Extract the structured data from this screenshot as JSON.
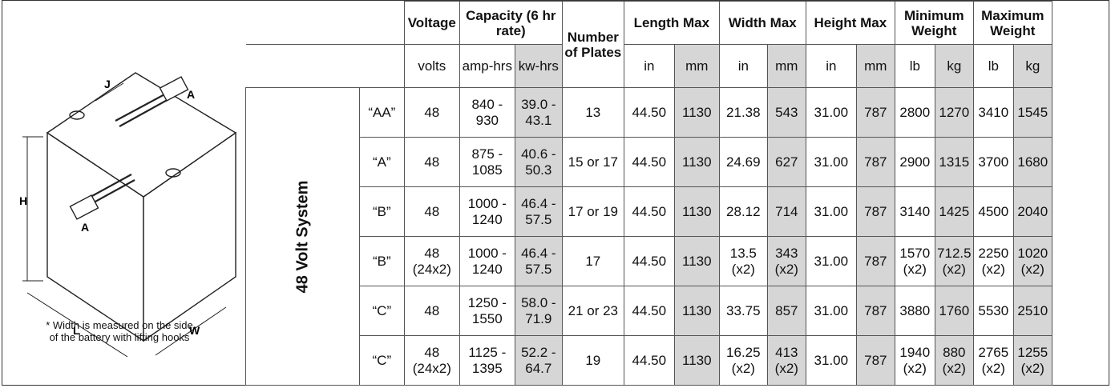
{
  "figure": {
    "label_j": "J",
    "label_a_top": "A",
    "label_h": "H",
    "label_a_bottom": "A",
    "label_l": "L",
    "label_w": "W",
    "note_line1": "* Width is measured on the side",
    "note_line2": "of the battery with lifting hooks"
  },
  "table": {
    "headers": {
      "voltage": "Voltage",
      "capacity": "Capacity (6 hr rate)",
      "plates": "Number of Plates",
      "length": "Length Max",
      "width": "Width Max",
      "height": "Height Max",
      "min_weight": "Minimum Weight",
      "max_weight": "Maximum Weight"
    },
    "units": [
      "volts",
      "amp-hrs",
      "kw-hrs",
      "in",
      "mm",
      "in",
      "mm",
      "in",
      "mm",
      "lb",
      "kg",
      "lb",
      "kg"
    ],
    "system_label": "48 Volt System",
    "rows": [
      {
        "cls": "“AA”",
        "volts": "48",
        "amp": "840 - 930",
        "kw": "39.0 - 43.1",
        "plates": "13",
        "len_in": "44.50",
        "len_mm": "1130",
        "wid_in": "21.38",
        "wid_mm": "543",
        "hgt_in": "31.00",
        "hgt_mm": "787",
        "min_lb": "2800",
        "min_kg": "1270",
        "max_lb": "3410",
        "max_kg": "1545"
      },
      {
        "cls": "“A”",
        "volts": "48",
        "amp": "875 - 1085",
        "kw": "40.6 - 50.3",
        "plates": "15 or 17",
        "len_in": "44.50",
        "len_mm": "1130",
        "wid_in": "24.69",
        "wid_mm": "627",
        "hgt_in": "31.00",
        "hgt_mm": "787",
        "min_lb": "2900",
        "min_kg": "1315",
        "max_lb": "3700",
        "max_kg": "1680"
      },
      {
        "cls": "“B”",
        "volts": "48",
        "amp": "1000 - 1240",
        "kw": "46.4 - 57.5",
        "plates": "17 or 19",
        "len_in": "44.50",
        "len_mm": "1130",
        "wid_in": "28.12",
        "wid_mm": "714",
        "hgt_in": "31.00",
        "hgt_mm": "787",
        "min_lb": "3140",
        "min_kg": "1425",
        "max_lb": "4500",
        "max_kg": "2040"
      },
      {
        "cls": "“B”",
        "volts": "48 (24x2)",
        "amp": "1000 - 1240",
        "kw": "46.4 - 57.5",
        "plates": "17",
        "len_in": "44.50",
        "len_mm": "1130",
        "wid_in": "13.5 (x2)",
        "wid_mm": "343 (x2)",
        "hgt_in": "31.00",
        "hgt_mm": "787",
        "min_lb": "1570 (x2)",
        "min_kg": "712.5 (x2)",
        "max_lb": "2250 (x2)",
        "max_kg": "1020 (x2)"
      },
      {
        "cls": "“C”",
        "volts": "48",
        "amp": "1250 - 1550",
        "kw": "58.0 - 71.9",
        "plates": "21 or 23",
        "len_in": "44.50",
        "len_mm": "1130",
        "wid_in": "33.75",
        "wid_mm": "857",
        "hgt_in": "31.00",
        "hgt_mm": "787",
        "min_lb": "3880",
        "min_kg": "1760",
        "max_lb": "5530",
        "max_kg": "2510"
      },
      {
        "cls": "“C”",
        "volts": "48 (24x2)",
        "amp": "1125 - 1395",
        "kw": "52.2 - 64.7",
        "plates": "19",
        "len_in": "44.50",
        "len_mm": "1130",
        "wid_in": "16.25 (x2)",
        "wid_mm": "413 (x2)",
        "hgt_in": "31.00",
        "hgt_mm": "787",
        "min_lb": "1940 (x2)",
        "min_kg": "880 (x2)",
        "max_lb": "2765 (x2)",
        "max_kg": "1255 (x2)"
      }
    ]
  }
}
